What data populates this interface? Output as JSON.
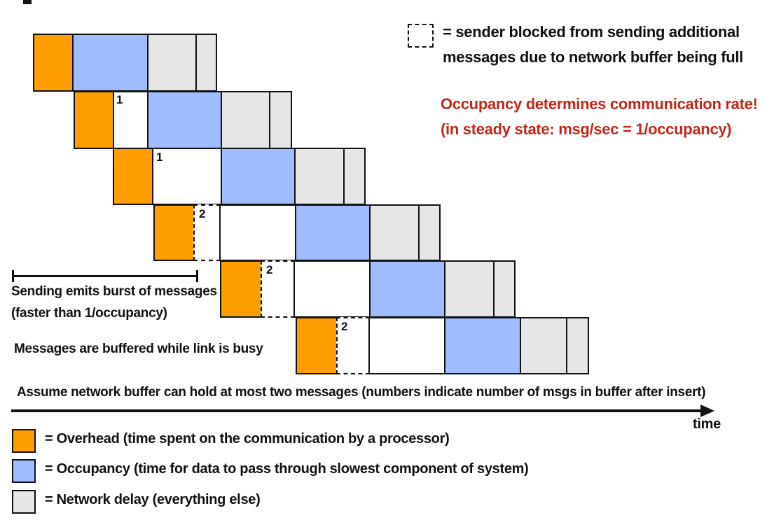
{
  "legend_top": {
    "blocked_line1": "= sender blocked from sending additional",
    "blocked_line2": "messages due to network buffer being full"
  },
  "highlight": {
    "line1": "Occupancy determines communication rate!",
    "line2": "(in steady state: msg/sec = 1/occupancy)",
    "color": "#C0281C"
  },
  "buffer_counts": [
    "1",
    "1",
    "2",
    "2",
    "2"
  ],
  "annotations": {
    "burst_line1": "Sending emits burst of messages",
    "burst_line2": "(faster than 1/occupancy)",
    "buffered": "Messages are buffered while link is busy",
    "assumption": "Assume network buffer can hold at most two messages (numbers indicate number of msgs in buffer after insert)",
    "time_label": "time"
  },
  "legend_bottom": {
    "overhead": "= Overhead  (time spent on the communication by a processor)",
    "occupancy": "= Occupancy (time for data to pass through slowest component of system)",
    "network": "= Network delay (everything else)"
  },
  "colors": {
    "overhead": "#FF9E00",
    "occupancy": "#9FBCFF",
    "network_delay": "#E6E6E6"
  }
}
